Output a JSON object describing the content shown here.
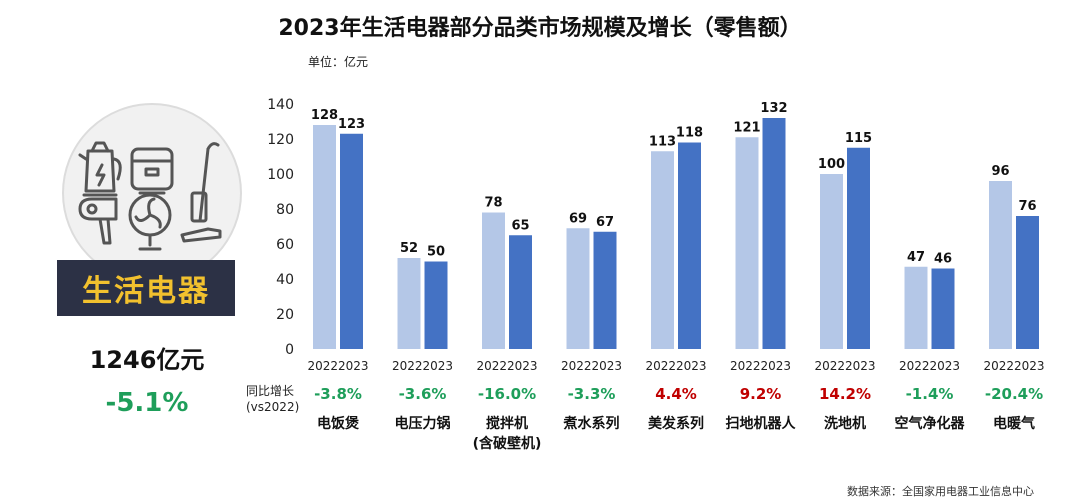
{
  "title": "2023年生活电器部分品类市场规模及增长（零售额）",
  "unit_label": "单位：亿元",
  "category_panel": {
    "label": "生活电器",
    "total": "1246亿元",
    "growth": "-5.1%"
  },
  "yoy_label_line1": "同比增长",
  "yoy_label_line2": "(vs2022)",
  "source": "数据来源：全国家用电器工业信息中心",
  "colors": {
    "bar_2022": "#b4c7e7",
    "bar_2023": "#4472c4",
    "positive": "#c00000",
    "negative": "#1e9e5a"
  },
  "chart_data": {
    "type": "bar",
    "title": "2023年生活电器部分品类市场规模及增长（零售额）",
    "ylabel": "单位：亿元",
    "ylim": [
      0,
      140
    ],
    "yticks": [
      0,
      20,
      40,
      60,
      80,
      100,
      120,
      140
    ],
    "year_labels": [
      "2022",
      "2023"
    ],
    "categories": [
      {
        "name": "电饭煲",
        "name2": "",
        "v2022": 128,
        "v2023": 123,
        "growth": "-3.8%"
      },
      {
        "name": "电压力锅",
        "name2": "",
        "v2022": 52,
        "v2023": 50,
        "growth": "-3.6%"
      },
      {
        "name": "搅拌机",
        "name2": "(含破壁机)",
        "v2022": 78,
        "v2023": 65,
        "growth": "-16.0%"
      },
      {
        "name": "煮水系列",
        "name2": "",
        "v2022": 69,
        "v2023": 67,
        "growth": "-3.3%"
      },
      {
        "name": "美发系列",
        "name2": "",
        "v2022": 113,
        "v2023": 118,
        "growth": "4.4%"
      },
      {
        "name": "扫地机器人",
        "name2": "",
        "v2022": 121,
        "v2023": 132,
        "growth": "9.2%"
      },
      {
        "name": "洗地机",
        "name2": "",
        "v2022": 100,
        "v2023": 115,
        "growth": "14.2%"
      },
      {
        "name": "空气净化器",
        "name2": "",
        "v2022": 47,
        "v2023": 46,
        "growth": "-1.4%"
      },
      {
        "name": "电暖气",
        "name2": "",
        "v2022": 96,
        "v2023": 76,
        "growth": "-20.4%"
      }
    ]
  }
}
